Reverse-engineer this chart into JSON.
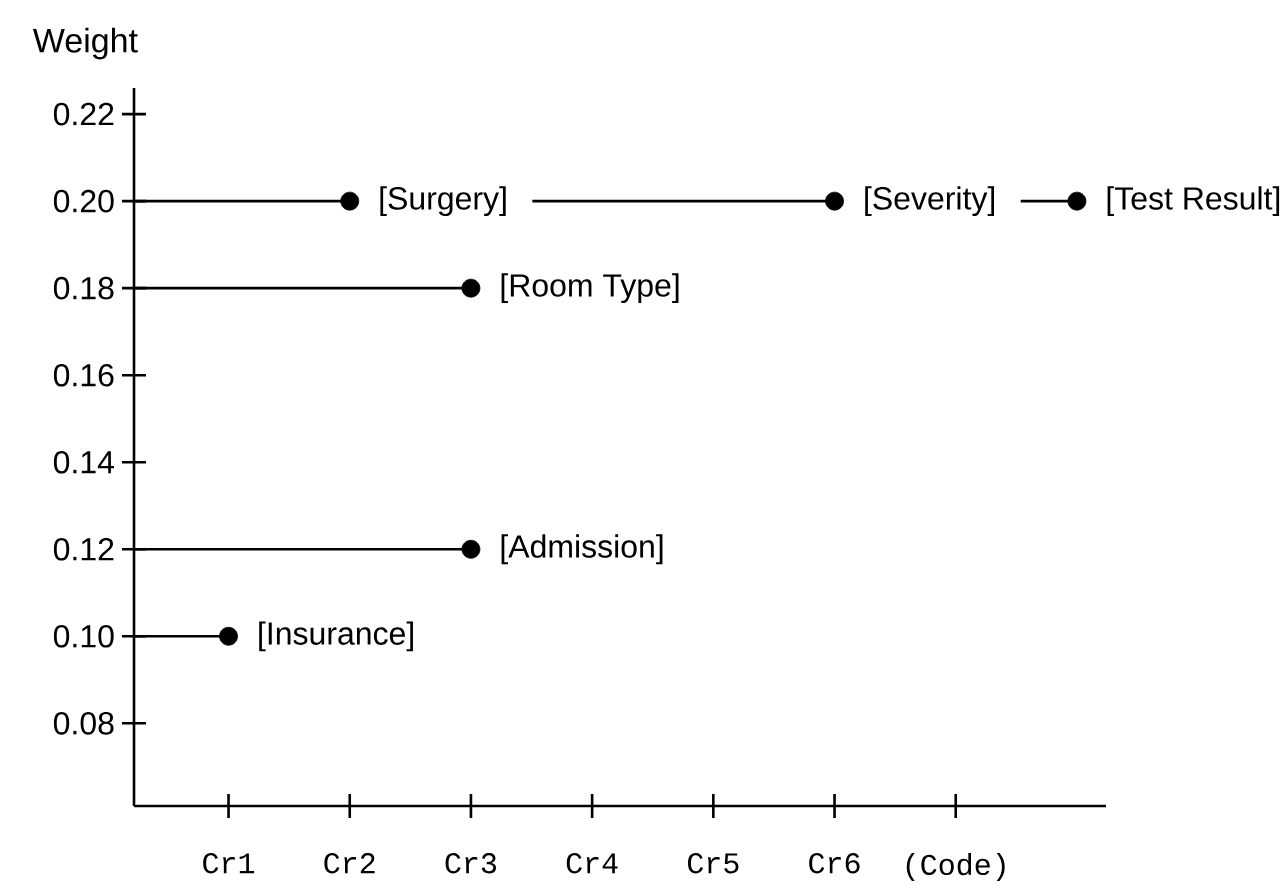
{
  "chart_data": {
    "type": "lollipop",
    "ylabel": "Weight",
    "categories": [
      "Cr1",
      "Cr2",
      "Cr3",
      "Cr4",
      "Cr5",
      "Cr6",
      "(Code)",
      null
    ],
    "series": [
      {
        "name": "[Insurance]",
        "color": "#000000",
        "values": [
          0.1,
          null,
          null,
          null,
          null,
          null,
          null,
          null
        ]
      },
      {
        "name": "[Surgery]",
        "color": "#000000",
        "values": [
          null,
          0.2,
          null,
          null,
          null,
          null,
          null,
          null
        ]
      },
      {
        "name": "[Room Type]",
        "color": "#000000",
        "values": [
          null,
          null,
          0.18,
          null,
          null,
          null,
          null,
          null
        ]
      },
      {
        "name": "[Admission]",
        "color": "#000000",
        "values": [
          null,
          null,
          0.12,
          null,
          null,
          null,
          null,
          null
        ]
      },
      {
        "name": "[Severity]",
        "color": "#000000",
        "values": [
          null,
          null,
          null,
          null,
          null,
          0.2,
          null,
          null
        ]
      },
      {
        "name": "[Test Result]",
        "color": "#000000",
        "values": [
          null,
          null,
          null,
          null,
          null,
          null,
          null,
          0.2
        ]
      }
    ],
    "ylim": [
      0.061,
      0.226
    ],
    "yticks": [
      0.08,
      {
        "value": 0.1,
        "label": "0.10"
      },
      0.12,
      0.14,
      0.16,
      0.18,
      {
        "value": 0.2,
        "label": "0.20"
      },
      0.22
    ],
    "marker": "circle",
    "grid": false,
    "legend": "top right"
  }
}
